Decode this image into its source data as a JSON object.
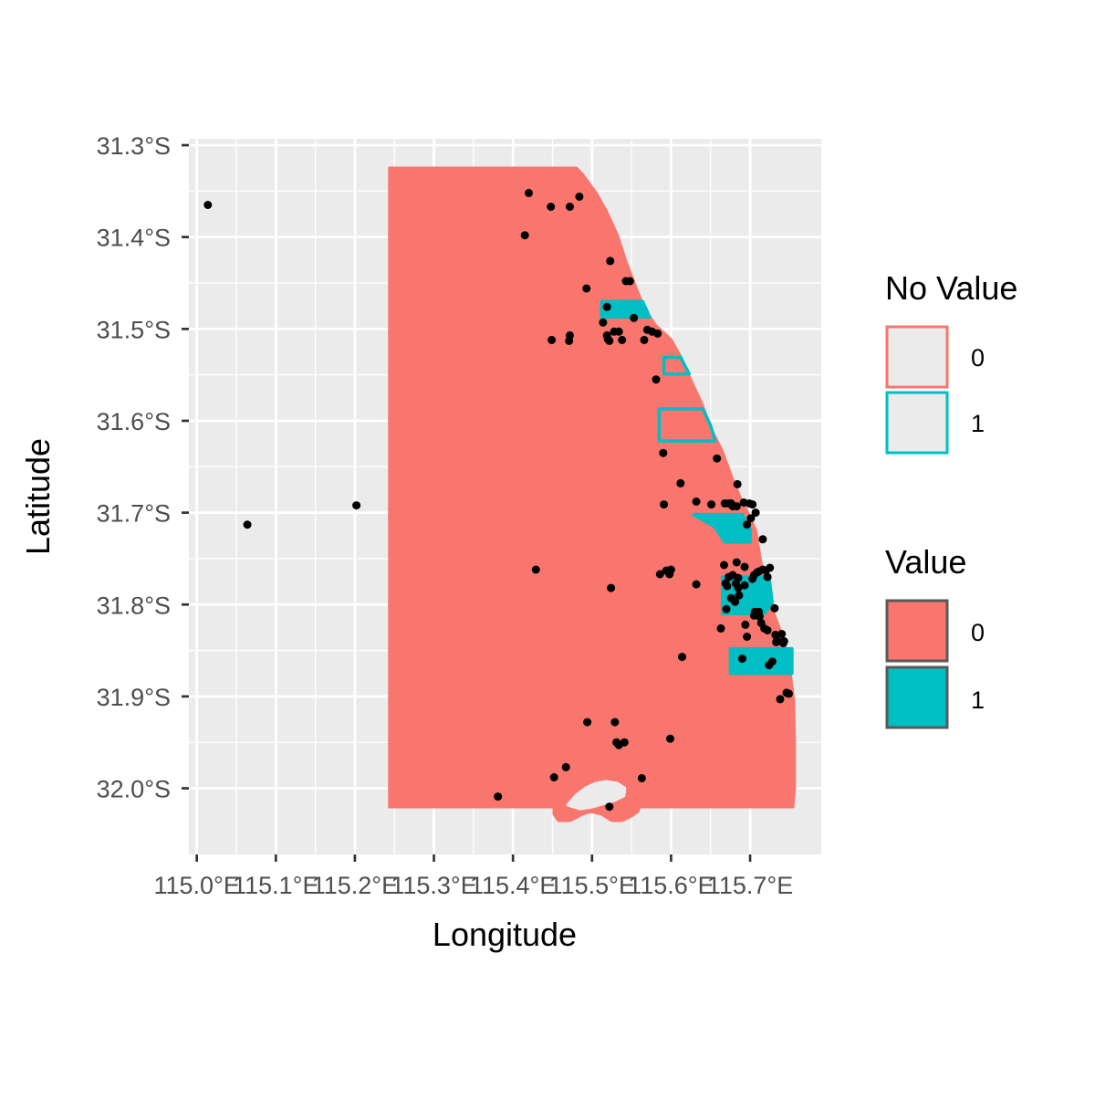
{
  "chart_data": {
    "type": "map",
    "xlabel": "Longitude",
    "ylabel": "Latitude",
    "x_ticks": [
      115.0,
      115.1,
      115.2,
      115.3,
      115.4,
      115.5,
      115.6,
      115.7
    ],
    "x_tick_labels": [
      "115.0°E",
      "115.1°E",
      "115.2°E",
      "115.3°E",
      "115.4°E",
      "115.5°E",
      "115.6°E",
      "115.7°E"
    ],
    "y_ticks": [
      -31.3,
      -31.4,
      -31.5,
      -31.6,
      -31.7,
      -31.8,
      -31.9,
      -32.0
    ],
    "y_tick_labels": [
      "31.3°S",
      "31.4°S",
      "31.5°S",
      "31.6°S",
      "31.7°S",
      "31.8°S",
      "31.9°S",
      "32.0°S"
    ],
    "xlim": [
      114.99,
      115.79
    ],
    "ylim": [
      -32.072,
      -31.293
    ],
    "grid": true,
    "legend_position": "right",
    "colors": {
      "panel_background": "#ebebeb",
      "grid": "#ffffff",
      "value_0": "#f8766d",
      "value_1": "#00bfc4",
      "points": "#000000",
      "legend_key_bg": "#ebebeb",
      "legend_key_border": "#595959"
    },
    "legends": [
      {
        "title": "No Value",
        "aesthetic": "colour",
        "entries": [
          {
            "label": "0",
            "color": "#f8766d"
          },
          {
            "label": "1",
            "color": "#00bfc4"
          }
        ]
      },
      {
        "title": "Value",
        "aesthetic": "fill",
        "entries": [
          {
            "label": "0",
            "color": "#f8766d"
          },
          {
            "label": "1",
            "color": "#00bfc4"
          }
        ]
      }
    ],
    "regions": [
      {
        "name": "study-area",
        "value": 0,
        "outline": 0,
        "coords": [
          [
            115.244,
            -31.325
          ],
          [
            115.48,
            -31.325
          ],
          [
            115.488,
            -31.332
          ],
          [
            115.505,
            -31.352
          ],
          [
            115.518,
            -31.372
          ],
          [
            115.532,
            -31.398
          ],
          [
            115.542,
            -31.425
          ],
          [
            115.553,
            -31.45
          ],
          [
            115.566,
            -31.478
          ],
          [
            115.58,
            -31.496
          ],
          [
            115.6,
            -31.512
          ],
          [
            115.613,
            -31.532
          ],
          [
            115.626,
            -31.558
          ],
          [
            115.638,
            -31.58
          ],
          [
            115.652,
            -31.612
          ],
          [
            115.664,
            -31.632
          ],
          [
            115.676,
            -31.66
          ],
          [
            115.688,
            -31.685
          ],
          [
            115.697,
            -31.7
          ],
          [
            115.707,
            -31.72
          ],
          [
            115.713,
            -31.752
          ],
          [
            115.72,
            -31.78
          ],
          [
            115.73,
            -31.81
          ],
          [
            115.742,
            -31.838
          ],
          [
            115.75,
            -31.87
          ],
          [
            115.755,
            -31.905
          ],
          [
            115.756,
            -31.95
          ],
          [
            115.756,
            -32.0
          ],
          [
            115.754,
            -32.02
          ],
          [
            115.244,
            -32.02
          ]
        ]
      },
      {
        "name": "south-bay",
        "value": 0,
        "outline": 0,
        "coords": [
          [
            115.452,
            -32.022
          ],
          [
            115.452,
            -32.028
          ],
          [
            115.458,
            -32.035
          ],
          [
            115.472,
            -32.035
          ],
          [
            115.488,
            -32.028
          ],
          [
            115.498,
            -32.025
          ],
          [
            115.512,
            -32.028
          ],
          [
            115.525,
            -32.035
          ],
          [
            115.538,
            -32.035
          ],
          [
            115.55,
            -32.03
          ],
          [
            115.558,
            -32.025
          ],
          [
            115.56,
            -32.02
          ]
        ]
      },
      {
        "name": "south-lake-hole",
        "value": 0,
        "outline": 0,
        "hole": true,
        "coords": [
          [
            115.47,
            -32.018
          ],
          [
            115.48,
            -32.008
          ],
          [
            115.492,
            -32.0
          ],
          [
            115.505,
            -31.995
          ],
          [
            115.518,
            -31.993
          ],
          [
            115.532,
            -31.995
          ],
          [
            115.541,
            -32.0
          ],
          [
            115.54,
            -32.008
          ],
          [
            115.528,
            -32.013
          ],
          [
            115.512,
            -32.017
          ],
          [
            115.5,
            -32.02
          ],
          [
            115.485,
            -32.022
          ]
        ]
      },
      {
        "name": "area-1-a",
        "value": 1,
        "outline": 1,
        "coords": [
          [
            115.512,
            -31.47
          ],
          [
            115.564,
            -31.47
          ],
          [
            115.573,
            -31.487
          ],
          [
            115.512,
            -31.487
          ]
        ]
      },
      {
        "name": "area-1-b",
        "value": 0,
        "outline": 1,
        "coords": [
          [
            115.591,
            -31.531
          ],
          [
            115.612,
            -31.531
          ],
          [
            115.623,
            -31.549
          ],
          [
            115.591,
            -31.549
          ]
        ]
      },
      {
        "name": "area-1-c",
        "value": 0,
        "outline": 1,
        "coords": [
          [
            115.585,
            -31.587
          ],
          [
            115.64,
            -31.587
          ],
          [
            115.65,
            -31.605
          ],
          [
            115.656,
            -31.622
          ],
          [
            115.585,
            -31.622
          ]
        ]
      },
      {
        "name": "area-1-d",
        "value": 1,
        "outline": 1,
        "coords": [
          [
            115.628,
            -31.702
          ],
          [
            115.69,
            -31.702
          ],
          [
            115.7,
            -31.718
          ],
          [
            115.7,
            -31.732
          ],
          [
            115.668,
            -31.732
          ],
          [
            115.655,
            -31.715
          ]
        ]
      },
      {
        "name": "area-1-e",
        "value": 1,
        "outline": 1,
        "coords": [
          [
            115.665,
            -31.77
          ],
          [
            115.724,
            -31.77
          ],
          [
            115.728,
            -31.798
          ],
          [
            115.718,
            -31.81
          ],
          [
            115.665,
            -31.81
          ]
        ]
      },
      {
        "name": "area-1-f",
        "value": 1,
        "outline": 1,
        "coords": [
          [
            115.675,
            -31.848
          ],
          [
            115.753,
            -31.848
          ],
          [
            115.753,
            -31.875
          ],
          [
            115.675,
            -31.875
          ]
        ]
      }
    ],
    "points": {
      "x": [
        115.014,
        115.064,
        115.202,
        115.42,
        115.448,
        115.472,
        115.484,
        115.415,
        115.523,
        115.543,
        115.548,
        115.493,
        115.519,
        115.514,
        115.534,
        115.519,
        115.553,
        115.57,
        115.566,
        115.52,
        115.522,
        115.528,
        115.538,
        115.576,
        115.583,
        115.449,
        115.472,
        115.471,
        115.581,
        115.59,
        115.612,
        115.591,
        115.632,
        115.651,
        115.668,
        115.673,
        115.692,
        115.678,
        115.676,
        115.683,
        115.699,
        115.703,
        115.707,
        115.701,
        115.696,
        115.658,
        115.684,
        115.667,
        115.693,
        115.678,
        115.673,
        115.685,
        115.716,
        115.725,
        115.72,
        115.709,
        115.705,
        115.669,
        115.682,
        115.671,
        115.685,
        115.693,
        115.703,
        115.722,
        115.706,
        115.711,
        115.712,
        115.705,
        115.714,
        115.718,
        115.722,
        115.732,
        115.74,
        115.734,
        115.743,
        115.724,
        115.728,
        115.749,
        115.738,
        115.746,
        115.694,
        115.696,
        115.663,
        115.614,
        115.69,
        115.67,
        115.681,
        115.686,
        115.676,
        115.716,
        115.711,
        115.733,
        115.742,
        115.731,
        115.683,
        115.586,
        115.594,
        115.6,
        115.632,
        115.598,
        115.429,
        115.524,
        115.494,
        115.529,
        115.534,
        115.531,
        115.541,
        115.599,
        115.467,
        115.452,
        115.563,
        115.522,
        115.381
      ],
      "y": [
        -31.365,
        -31.713,
        -31.692,
        -31.352,
        -31.367,
        -31.367,
        -31.356,
        -31.398,
        -31.426,
        -31.448,
        -31.448,
        -31.456,
        -31.476,
        -31.493,
        -31.503,
        -31.507,
        -31.488,
        -31.501,
        -31.512,
        -31.511,
        -31.513,
        -31.503,
        -31.512,
        -31.503,
        -31.505,
        -31.512,
        -31.507,
        -31.513,
        -31.555,
        -31.635,
        -31.668,
        -31.691,
        -31.688,
        -31.691,
        -31.69,
        -31.69,
        -31.689,
        -31.693,
        -31.69,
        -31.693,
        -31.69,
        -31.691,
        -31.7,
        -31.706,
        -31.713,
        -31.641,
        -31.669,
        -31.757,
        -31.759,
        -31.768,
        -31.77,
        -31.771,
        -31.762,
        -31.76,
        -31.763,
        -31.765,
        -31.768,
        -31.777,
        -31.777,
        -31.78,
        -31.782,
        -31.779,
        -31.772,
        -31.77,
        -31.808,
        -31.808,
        -31.813,
        -31.812,
        -31.82,
        -31.826,
        -31.828,
        -31.833,
        -31.832,
        -31.839,
        -31.84,
        -31.866,
        -31.862,
        -31.897,
        -31.903,
        -31.896,
        -31.822,
        -31.835,
        -31.826,
        -31.857,
        -31.859,
        -31.805,
        -31.797,
        -31.79,
        -31.793,
        -31.729,
        -31.764,
        -31.841,
        -31.842,
        -31.804,
        -31.754,
        -31.767,
        -31.763,
        -31.762,
        -31.778,
        -31.767,
        -31.762,
        -31.782,
        -31.928,
        -31.928,
        -31.953,
        -31.95,
        -31.95,
        -31.946,
        -31.977,
        -31.988,
        -31.989,
        -32.02,
        -32.009
      ]
    }
  }
}
